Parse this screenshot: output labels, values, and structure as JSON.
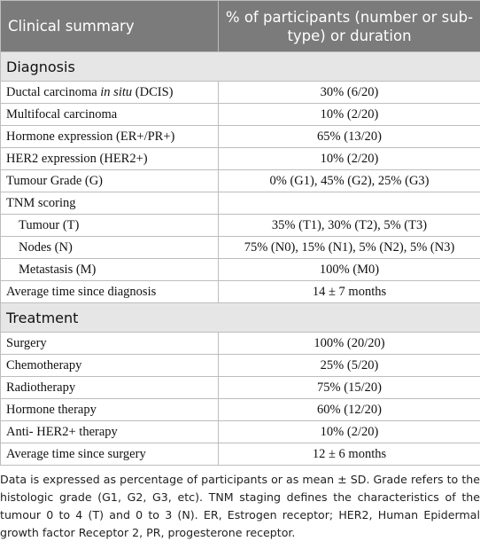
{
  "table": {
    "header": [
      "Clinical summary",
      "% of participants (number or sub-type) or duration"
    ],
    "sections": [
      {
        "title": "Diagnosis",
        "rows": [
          {
            "label": [
              "Ductal carcinoma",
              "in situ",
              "(DCIS)"
            ],
            "value": "30% (6/20)"
          },
          {
            "label": "Multifocal carcinoma",
            "value": "10% (2/20)"
          },
          {
            "label": "Hormone expression (ER+/PR+)",
            "value": "65% (13/20)"
          },
          {
            "label": "HER2 expression (HER2+)",
            "value": "10% (2/20)"
          },
          {
            "label": "Tumour Grade (G)",
            "value": "0% (G1), 45% (G2), 25% (G3)"
          },
          {
            "label": "TNM scoring",
            "items": [
              {
                "label": "Tumour (T)",
                "value": "35% (T1), 30% (T2), 5% (T3)"
              },
              {
                "label": "Nodes (N)",
                "value": "75% (N0), 15% (N1), 5% (N2), 5% (N3)"
              },
              {
                "label": "Metastasis (M)",
                "value": "100% (M0)"
              }
            ]
          },
          {
            "label": "Average time since diagnosis",
            "value": "14 ± 7 months"
          }
        ]
      },
      {
        "title": "Treatment",
        "rows": [
          {
            "label": "Surgery",
            "value": "100% (20/20)"
          },
          {
            "label": "Chemotherapy",
            "value": "25% (5/20)"
          },
          {
            "label": "Radiotherapy",
            "value": "75% (15/20)"
          },
          {
            "label": "Hormone therapy",
            "value": "60% (12/20)"
          },
          {
            "label": "Anti- HER2+ therapy",
            "value": "10% (2/20)"
          },
          {
            "label": "Average time since surgery",
            "value": "12 ± 6 months"
          }
        ]
      }
    ]
  },
  "footnote": "Data is expressed as percentage of participants or as mean ± SD. Grade refers to the histologic grade (G1, G2, G3, etc). TNM staging defines the characteristics of the tumour 0 to 4 (T) and 0 to 3 (N). ER, Estrogen receptor; HER2, Human Epidermal growth factor Receptor 2, PR, progesterone receptor."
}
